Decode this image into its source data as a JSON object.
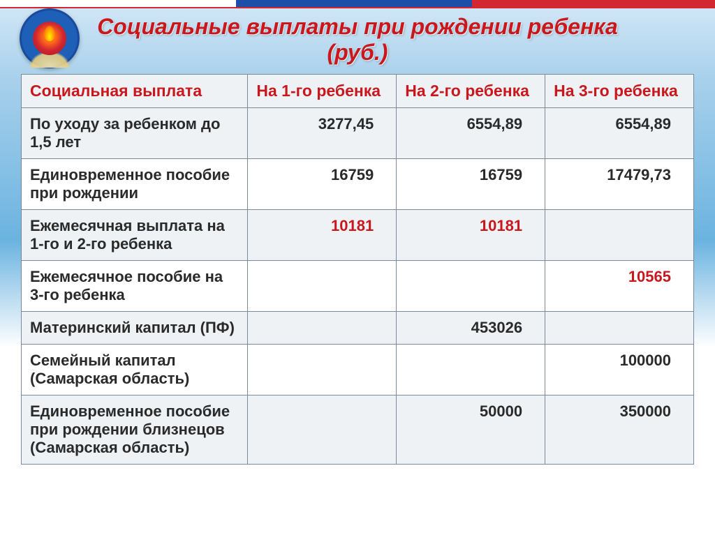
{
  "title": "Социальные выплаты при рождении ребенка (руб.)",
  "columns": [
    "Социальная выплата",
    "На 1-го ребенка",
    "На 2-го ребенка",
    "На 3-го ребенка"
  ],
  "rows": [
    {
      "label": "По уходу за ребенком до 1,5 лет",
      "c1": {
        "v": "3277,45",
        "red": false
      },
      "c2": {
        "v": "6554,89",
        "red": false
      },
      "c3": {
        "v": "6554,89",
        "red": false
      }
    },
    {
      "label": "Единовременное пособие при рождении",
      "c1": {
        "v": "16759",
        "red": false
      },
      "c2": {
        "v": "16759",
        "red": false
      },
      "c3": {
        "v": "17479,73",
        "red": false
      }
    },
    {
      "label": "Ежемесячная выплата на 1-го и 2-го ребенка",
      "c1": {
        "v": "10181",
        "red": true
      },
      "c2": {
        "v": "10181",
        "red": true
      },
      "c3": {
        "v": "",
        "red": false
      }
    },
    {
      "label": "Ежемесячное пособие на 3-го ребенка",
      "c1": {
        "v": "",
        "red": false
      },
      "c2": {
        "v": "",
        "red": false
      },
      "c3": {
        "v": "10565",
        "red": true
      }
    },
    {
      "label": "Материнский капитал (ПФ)",
      "c1": {
        "v": "",
        "red": false
      },
      "c2": {
        "v": "453026",
        "red": false
      },
      "c3": {
        "v": "",
        "red": false
      }
    },
    {
      "label": "Семейный капитал (Самарская область)",
      "c1": {
        "v": "",
        "red": false
      },
      "c2": {
        "v": "",
        "red": false
      },
      "c3": {
        "v": "100000",
        "red": false
      }
    },
    {
      "label": "Единовременное пособие при рождении близнецов (Самарская область)",
      "c1": {
        "v": "",
        "red": false
      },
      "c2": {
        "v": "50000",
        "red": false
      },
      "c3": {
        "v": "350000",
        "red": false
      }
    }
  ],
  "style": {
    "title_color": "#c8181e",
    "header_bg": "#eef2f5",
    "header_color": "#c8181e",
    "row_alt_bg": "#eef2f5",
    "border_color": "#7a8a9a",
    "red_value_color": "#c8181e",
    "normal_value_color": "#2a2a2a",
    "font_family": "Arial",
    "title_fontsize": 32,
    "cell_fontsize": 22
  }
}
